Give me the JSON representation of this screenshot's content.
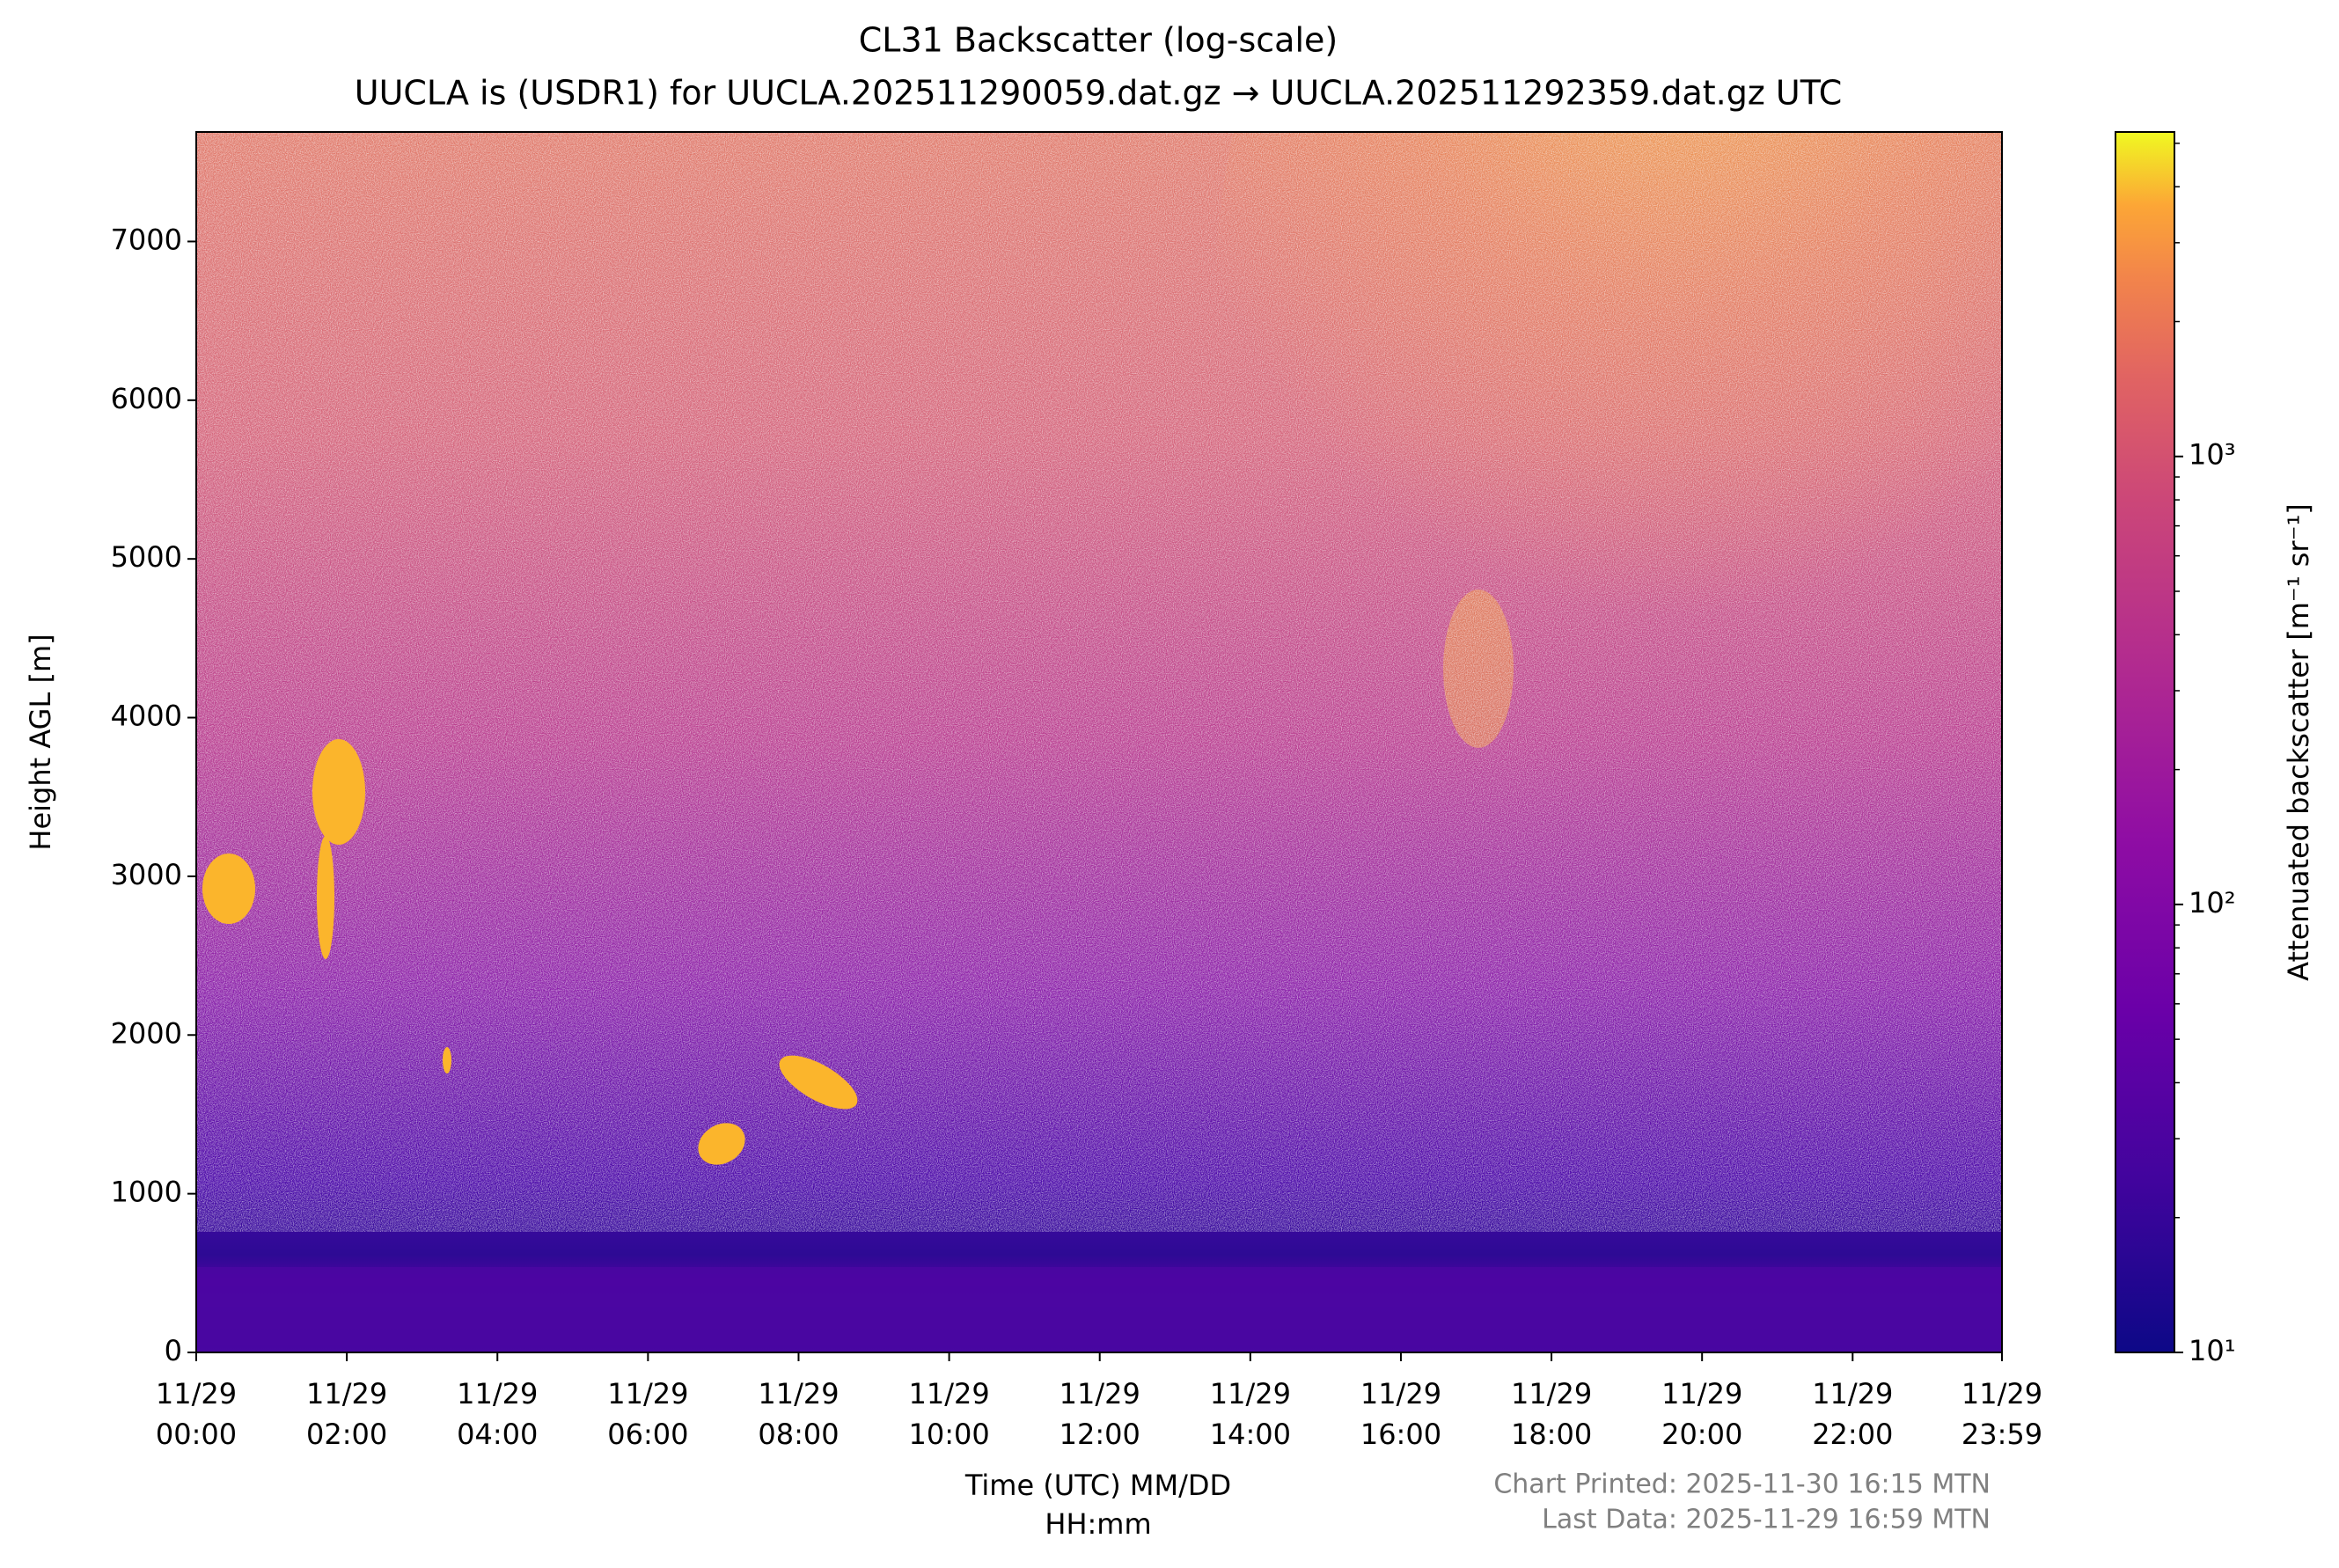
{
  "chart_data": {
    "type": "heatmap",
    "title": [
      "CL31 Backscatter (log-scale)",
      "UUCLA is (USDR1) for UUCLA.202511290059.dat.gz → UUCLA.202511292359.dat.gz UTC"
    ],
    "xlabel": [
      "Time (UTC) MM/DD",
      "HH:mm"
    ],
    "ylabel": "Height AGL [m]",
    "xlim": [
      0,
      1439
    ],
    "xticks": [
      {
        "value": 0,
        "label": [
          "11/29",
          "00:00"
        ]
      },
      {
        "value": 120,
        "label": [
          "11/29",
          "02:00"
        ]
      },
      {
        "value": 240,
        "label": [
          "11/29",
          "04:00"
        ]
      },
      {
        "value": 360,
        "label": [
          "11/29",
          "06:00"
        ]
      },
      {
        "value": 480,
        "label": [
          "11/29",
          "08:00"
        ]
      },
      {
        "value": 600,
        "label": [
          "11/29",
          "10:00"
        ]
      },
      {
        "value": 720,
        "label": [
          "11/29",
          "12:00"
        ]
      },
      {
        "value": 840,
        "label": [
          "11/29",
          "14:00"
        ]
      },
      {
        "value": 960,
        "label": [
          "11/29",
          "16:00"
        ]
      },
      {
        "value": 1080,
        "label": [
          "11/29",
          "18:00"
        ]
      },
      {
        "value": 1200,
        "label": [
          "11/29",
          "20:00"
        ]
      },
      {
        "value": 1320,
        "label": [
          "11/29",
          "22:00"
        ]
      },
      {
        "value": 1439,
        "label": [
          "11/29",
          "23:59"
        ]
      }
    ],
    "ylim": [
      0,
      7690
    ],
    "yticks": [
      0,
      1000,
      2000,
      3000,
      4000,
      5000,
      6000,
      7000
    ],
    "colormap": "plasma",
    "colorbar": {
      "label": "Attenuated backscatter [m⁻¹ sr⁻¹]",
      "log": true,
      "lim": [
        10,
        5300
      ],
      "ticks": [
        {
          "value": 10,
          "label": "10¹"
        },
        {
          "value": 100,
          "label": "10²"
        },
        {
          "value": 1000,
          "label": "10³"
        }
      ]
    },
    "footer": [
      "Chart Printed: 2025-11-30 16:15 MTN",
      "Last Data: 2025-11-29 16:59 MTN"
    ]
  }
}
